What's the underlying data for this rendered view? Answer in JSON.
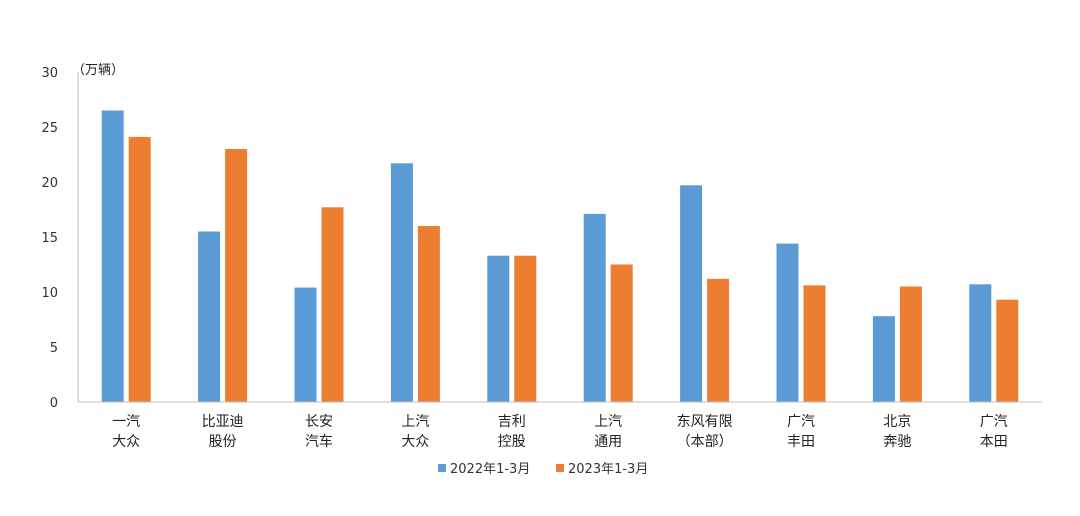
{
  "chart_data": {
    "type": "bar",
    "title": "",
    "unit_label": "（万辆）",
    "xlabel": "",
    "ylabel": "",
    "ylim": [
      0,
      30
    ],
    "yticks": [
      0,
      5,
      10,
      15,
      20,
      25,
      30
    ],
    "grid": false,
    "legend_position": "bottom",
    "categories": [
      [
        "一汽",
        "大众"
      ],
      [
        "比亚迪",
        "股份"
      ],
      [
        "长安",
        "汽车"
      ],
      [
        "上汽",
        "大众"
      ],
      [
        "吉利",
        "控股"
      ],
      [
        "上汽",
        "通用"
      ],
      [
        "东风有限",
        "（本部）"
      ],
      [
        "广汽",
        "丰田"
      ],
      [
        "北京",
        "奔驰"
      ],
      [
        "广汽",
        "本田"
      ]
    ],
    "series": [
      {
        "name": "2022年1-3月",
        "color": "#5b9bd5",
        "values": [
          26.5,
          15.5,
          10.4,
          21.7,
          13.3,
          17.1,
          19.7,
          14.4,
          7.8,
          10.7
        ]
      },
      {
        "name": "2023年1-3月",
        "color": "#ed7d31",
        "values": [
          24.1,
          23.0,
          17.7,
          16.0,
          13.3,
          12.5,
          11.2,
          10.6,
          10.5,
          9.3
        ]
      }
    ]
  }
}
